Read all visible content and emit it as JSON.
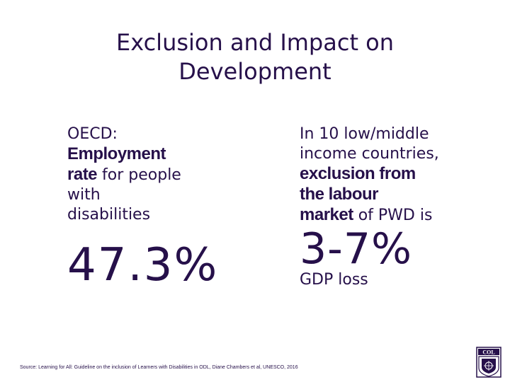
{
  "slide": {
    "title_line1": "Exclusion and Impact on",
    "title_line2": "Development",
    "left": {
      "line1": "OECD:",
      "bold1": "Employment",
      "bold2": "rate",
      "rest2": " for people",
      "line4": "with",
      "line5": "disabilities",
      "big_value": "47.3%"
    },
    "right": {
      "line1": "In 10 low/middle",
      "line2": "income countries,",
      "bold1": "exclusion from",
      "bold2": "the labour",
      "bold3": "market",
      "rest3": " of PWD is",
      "big_value": "3-7%",
      "sub": "GDP loss"
    },
    "source": "Source: Learning for All: Guideline on the inclusion of Learners with Disabilities in ODL, Diane Chambers et al, UNESCO, 2016",
    "logo_text": "COL",
    "accent_color": "#26104a"
  }
}
